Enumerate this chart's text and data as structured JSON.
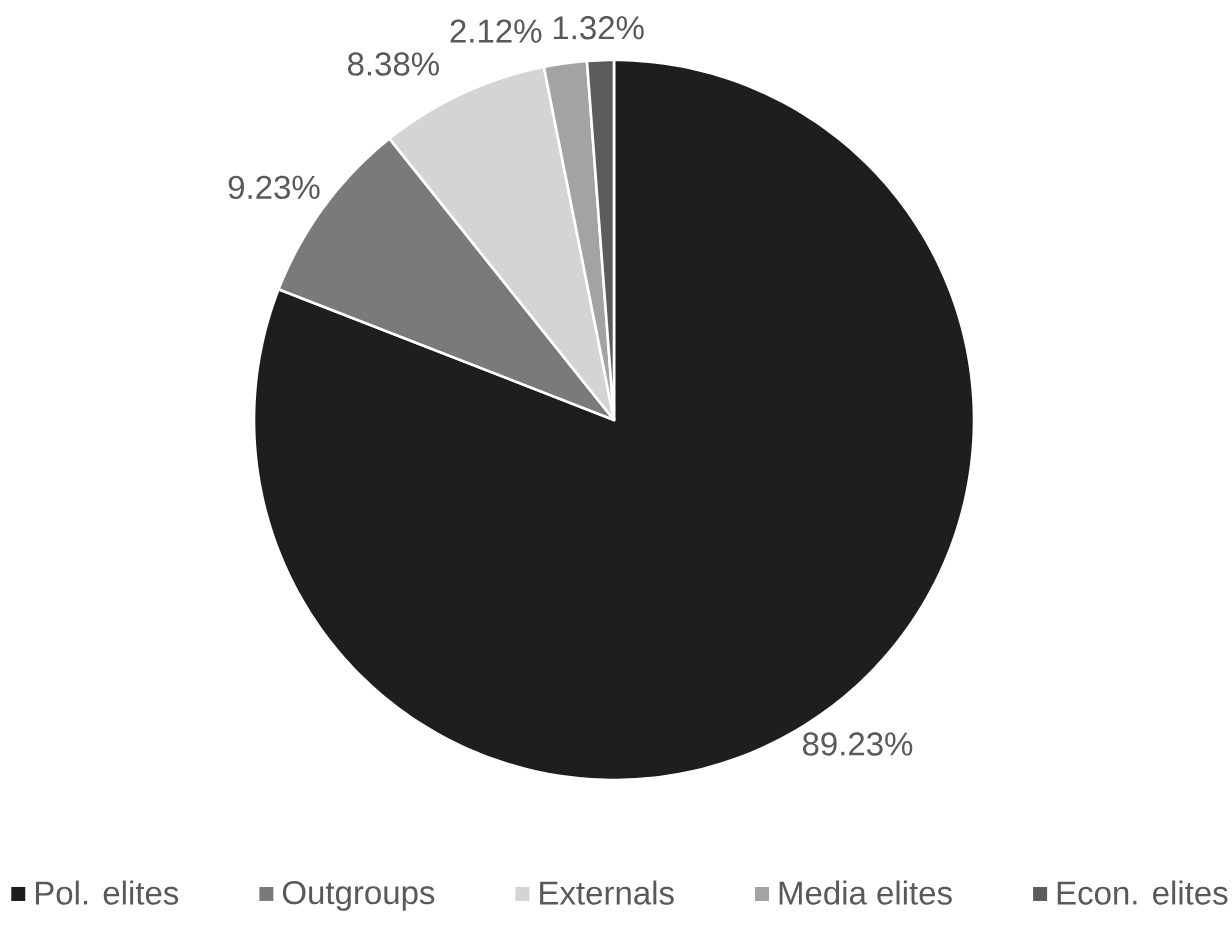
{
  "chart_data": {
    "type": "pie",
    "categories": [
      "Pol. elites",
      "Outgroups",
      "Externals",
      "Media elites",
      "Econ. elites"
    ],
    "values": [
      89.23,
      9.23,
      8.38,
      2.12,
      1.32
    ],
    "colors": [
      "#1e1e1e",
      "#7a7a7a",
      "#d4d4d4",
      "#a3a3a3",
      "#5c5c5c"
    ],
    "value_labels": [
      "89.23%",
      "9.23%",
      "8.38%",
      "2.12%",
      "1.32%"
    ],
    "legend": "bottom"
  }
}
